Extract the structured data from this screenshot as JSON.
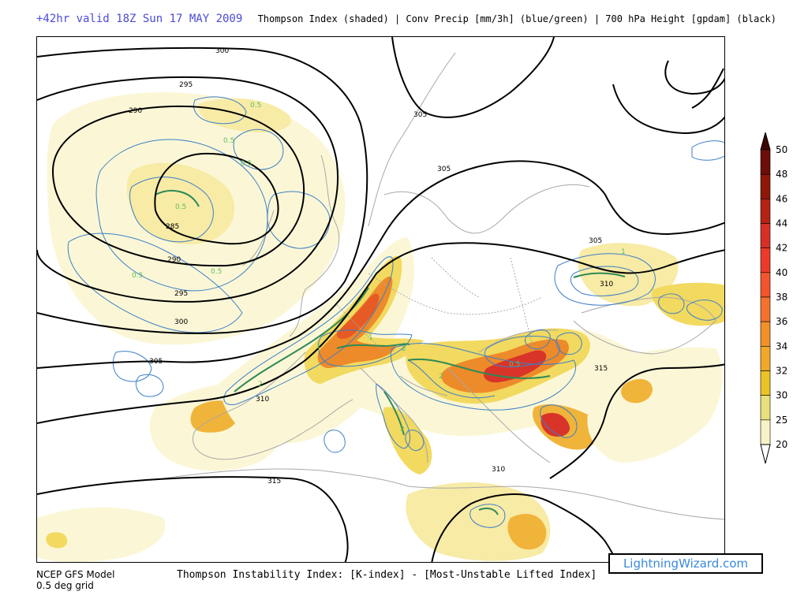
{
  "header": {
    "valid_text": "+42hr valid 18Z Sun 17 MAY 2009",
    "description": "Thompson Index (shaded) | Conv Precip [mm/3h] (blue/green) | 700 hPa Height [gpdam] (black)"
  },
  "colors": {
    "shade_0": "#fbf7d6",
    "shade_1": "#f7eba6",
    "shade_2": "#f2d960",
    "shade_3": "#f0b43a",
    "shade_4": "#ed8a2a",
    "shade_5": "#e65a26",
    "shade_6": "#d8342a",
    "precip_blue": "#3d7fc7",
    "precip_green": "#2e8a57",
    "height_contour": "#000000",
    "border_gray": "#a8a8a8"
  },
  "colorbar": {
    "labels": [
      "50",
      "48",
      "46",
      "44",
      "42",
      "40",
      "38",
      "36",
      "34",
      "32",
      "30",
      "25",
      "20"
    ],
    "colors": [
      "#6b0f08",
      "#8e1808",
      "#b32414",
      "#d63026",
      "#ec3a2a",
      "#f2542c",
      "#f3732e",
      "#f2902a",
      "#f0a72a",
      "#eac327",
      "#e7e07c",
      "#f7f3c6",
      "#ffffff"
    ]
  },
  "contour_labels": [
    {
      "text": "300",
      "height_gpdam": 300
    },
    {
      "text": "295",
      "height_gpdam": 295
    },
    {
      "text": "290",
      "height_gpdam": 290
    },
    {
      "text": "285",
      "height_gpdam": 285
    },
    {
      "text": "290",
      "height_gpdam": 290
    },
    {
      "text": "295",
      "height_gpdam": 295
    },
    {
      "text": "300",
      "height_gpdam": 300
    },
    {
      "text": "305",
      "height_gpdam": 305
    },
    {
      "text": "305",
      "height_gpdam": 305
    },
    {
      "text": "305",
      "height_gpdam": 305
    },
    {
      "text": "305",
      "height_gpdam": 305
    },
    {
      "text": "310",
      "height_gpdam": 310
    },
    {
      "text": "310",
      "height_gpdam": 310
    },
    {
      "text": "315",
      "height_gpdam": 315
    },
    {
      "text": "315",
      "height_gpdam": 315
    },
    {
      "text": "310",
      "height_gpdam": 310
    }
  ],
  "precip_labels": [
    "0.5",
    "0.5",
    "0.5",
    "0.5",
    "0.5",
    "0.5",
    "1",
    "1",
    "2",
    "2",
    "2",
    "1",
    "0.5",
    "2"
  ],
  "footer": {
    "model_line1": "NCEP GFS Model",
    "model_line2": "0.5 deg grid",
    "index_text": "Thompson Instability Index: [K-index] - [Most-Unstable Lifted Index]"
  },
  "logo": {
    "text": "LightningWizard.com"
  }
}
